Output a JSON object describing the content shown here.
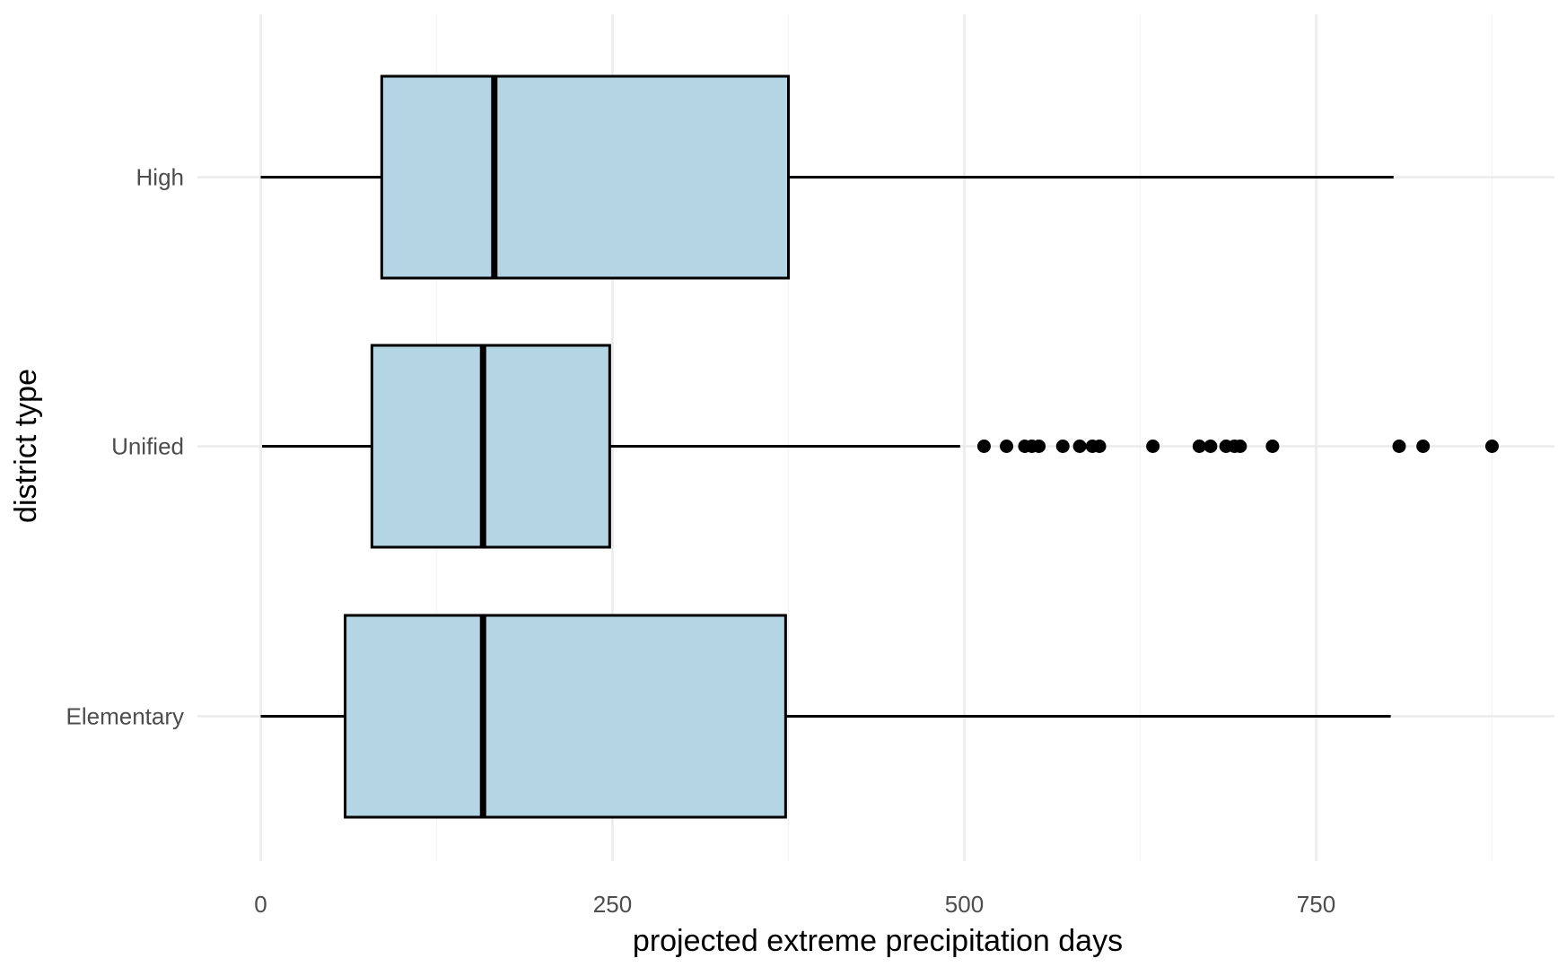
{
  "chart_data": {
    "type": "boxplot",
    "orientation": "horizontal",
    "title": "",
    "xlabel": "projected extreme precipitation days",
    "ylabel": "district type",
    "xlim": [
      -50,
      920
    ],
    "x_ticks": [
      0,
      250,
      500,
      750
    ],
    "x_tick_labels": [
      "0",
      "250",
      "500",
      "750"
    ],
    "grid": true,
    "legend": "none",
    "box_fill": "#b3d5e4",
    "categories": [
      "High",
      "Unified",
      "Elementary"
    ],
    "boxes": [
      {
        "category": "High",
        "whisker_low": 0,
        "q1": 86,
        "median": 166,
        "q3": 375,
        "whisker_high": 805,
        "outliers": []
      },
      {
        "category": "Unified",
        "whisker_low": 1,
        "q1": 79,
        "median": 158,
        "q3": 248,
        "whisker_high": 497,
        "outliers": [
          514,
          530,
          543,
          548,
          553,
          570,
          582,
          591,
          596,
          634,
          667,
          675,
          686,
          692,
          696,
          719,
          809,
          826,
          875
        ]
      },
      {
        "category": "Elementary",
        "whisker_low": 0,
        "q1": 60,
        "median": 158,
        "q3": 373,
        "whisker_high": 803,
        "outliers": []
      }
    ]
  }
}
